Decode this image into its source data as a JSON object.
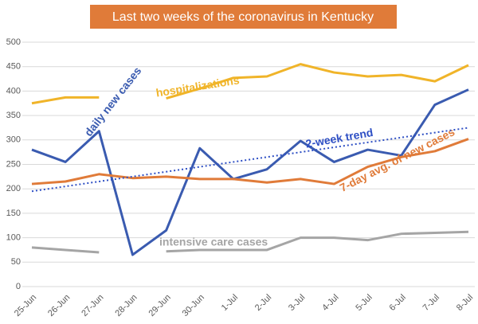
{
  "chart_data": {
    "type": "line",
    "title": "Last two weeks of the coronavirus in Kentucky",
    "categories": [
      "25-Jun",
      "26-Jun",
      "27-Jun",
      "28-Jun",
      "29-Jun",
      "30-Jun",
      "1-Jul",
      "2-Jul",
      "3-Jul",
      "4-Jul",
      "5-Jul",
      "6-Jul",
      "7-Jul",
      "8-Jul"
    ],
    "ylim": [
      0,
      500
    ],
    "yticks": [
      0,
      50,
      100,
      150,
      200,
      250,
      300,
      350,
      400,
      450,
      500
    ],
    "grid": true,
    "series": [
      {
        "name": "hospitalizations",
        "color": "#f0b429",
        "values": [
          375,
          387,
          387,
          null,
          385,
          405,
          427,
          430,
          455,
          438,
          430,
          433,
          420,
          453
        ]
      },
      {
        "name": "daily new cases",
        "color": "#3a5bb0",
        "values": [
          280,
          255,
          318,
          65,
          115,
          283,
          220,
          240,
          298,
          255,
          280,
          268,
          372,
          403
        ]
      },
      {
        "name": "7-day avg. of new cases",
        "color": "#e07b39",
        "values": [
          210,
          215,
          230,
          222,
          225,
          220,
          220,
          213,
          220,
          210,
          245,
          265,
          277,
          302
        ]
      },
      {
        "name": "intensive care cases",
        "color": "#a5a5a5",
        "values": [
          80,
          75,
          70,
          null,
          72,
          75,
          75,
          75,
          100,
          100,
          95,
          108,
          110,
          112
        ]
      },
      {
        "name": "2-week trend",
        "color": "#2e4fc4",
        "dashed": true,
        "values": [
          195,
          205,
          215,
          225,
          235,
          245,
          255,
          265,
          275,
          285,
          295,
          305,
          315,
          325
        ]
      }
    ]
  }
}
